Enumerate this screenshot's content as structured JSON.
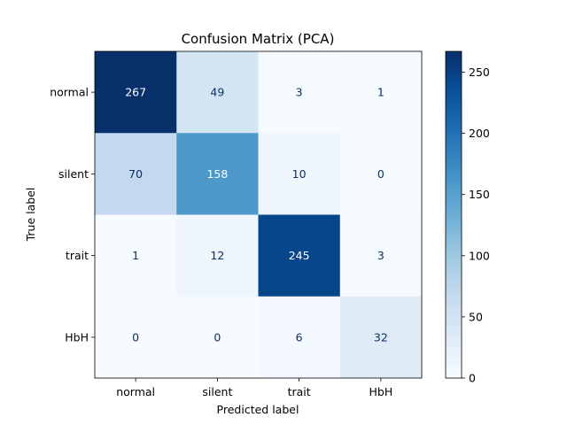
{
  "chart_data": {
    "type": "heatmap",
    "title": "Confusion Matrix (PCA)",
    "xlabel": "Predicted label",
    "ylabel": "True label",
    "x_categories": [
      "normal",
      "silent",
      "trait",
      "HbH"
    ],
    "y_categories": [
      "normal",
      "silent",
      "trait",
      "HbH"
    ],
    "values": [
      [
        267,
        49,
        3,
        1
      ],
      [
        70,
        158,
        10,
        0
      ],
      [
        1,
        12,
        245,
        3
      ],
      [
        0,
        0,
        6,
        32
      ]
    ],
    "colormap": "Blues",
    "color_range": [
      0,
      267
    ],
    "colorbar_ticks": [
      0,
      50,
      100,
      150,
      200,
      250
    ],
    "text_color_light": "#ffffff",
    "text_color_dark": "#08306b"
  }
}
